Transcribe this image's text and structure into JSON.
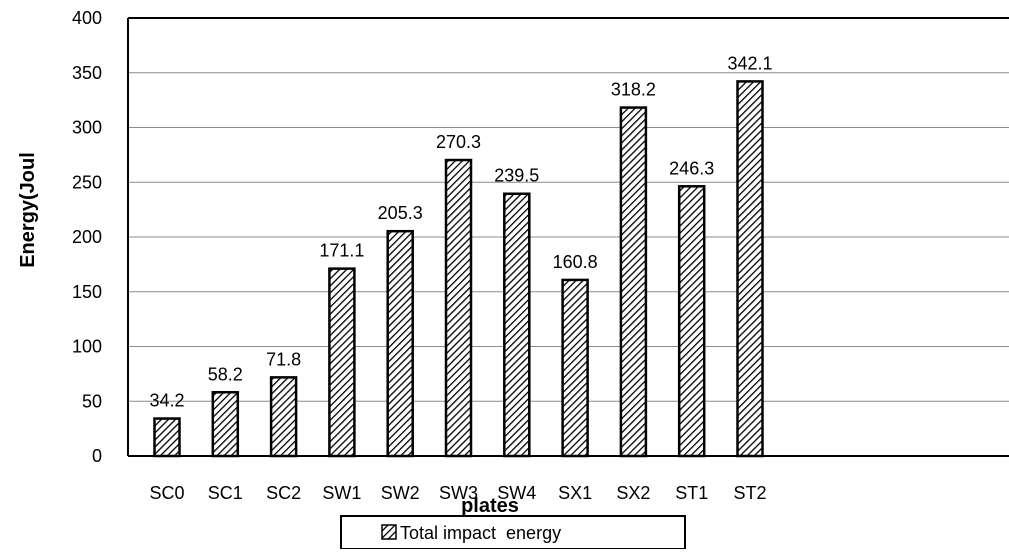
{
  "chart_data": {
    "type": "bar",
    "title": "",
    "xlabel": "plates",
    "ylabel": "Energy(Joul",
    "categories": [
      "SC0",
      "SC1",
      "SC2",
      "SW1",
      "SW2",
      "SW3",
      "SW4",
      "SX1",
      "SX2",
      "ST1",
      "ST2"
    ],
    "series": [
      {
        "name": "Total impact  energy",
        "values": [
          34.2,
          58.2,
          71.8,
          171.1,
          205.3,
          270.3,
          239.5,
          160.8,
          318.2,
          246.3,
          342.1
        ],
        "labels": [
          "34.2",
          "58.2",
          "71.8",
          "171.1",
          "205.3",
          "270.3",
          "239.5",
          "160.8",
          "318.2",
          "246.3",
          "342.1"
        ]
      }
    ],
    "ylim": [
      0,
      400
    ],
    "yticks": [
      "0",
      "50",
      "100",
      "150",
      "200",
      "250",
      "300",
      "350",
      "400"
    ],
    "grid": "horizontal",
    "legend": "bottom-center",
    "bar_fill": "diagonal-hatch",
    "colors": {
      "bar_stroke": "#000000",
      "hatch": "#000000",
      "background": "#ffffff",
      "gridline": "#8c8c8c"
    }
  }
}
